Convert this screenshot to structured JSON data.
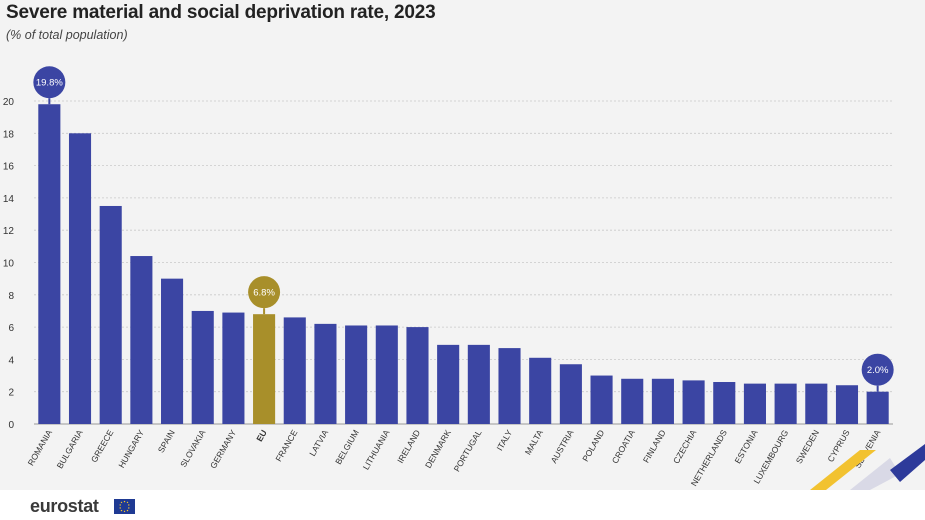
{
  "header": {
    "title": "Severe material and social deprivation rate, 2023",
    "subtitle": "(% of total population)"
  },
  "footer": {
    "brand": "eurostat",
    "flag_icon": "eu-flag-icon"
  },
  "colors": {
    "bar": "#3b45a3",
    "eu_bar": "#a88f2a",
    "badge": "#3b45a3",
    "eu_badge": "#a88f2a",
    "grid": "#c9c9c9",
    "accent_yellow": "#f2c230",
    "accent_blue": "#2d3a9a"
  },
  "chart_data": {
    "type": "bar",
    "categories": [
      "ROMANIA",
      "BULGARIA",
      "GREECE",
      "HUNGARY",
      "SPAIN",
      "SLOVAKIA",
      "GERMANY",
      "EU",
      "FRANCE",
      "LATVIA",
      "BELGIUM",
      "LITHUANIA",
      "IRELAND",
      "DENMARK",
      "PORTUGAL",
      "ITALY",
      "MALTA",
      "AUSTRIA",
      "POLAND",
      "CROATIA",
      "FINLAND",
      "CZECHIA",
      "NETHERLANDS",
      "ESTONIA",
      "LUXEMBOURG",
      "SWEDEN",
      "CYPRUS",
      "SLOVENIA"
    ],
    "values": [
      19.8,
      18.0,
      13.5,
      10.4,
      9.0,
      7.0,
      6.9,
      6.8,
      6.6,
      6.2,
      6.1,
      6.1,
      6.0,
      4.9,
      4.9,
      4.7,
      4.1,
      3.7,
      3.0,
      2.8,
      2.8,
      2.7,
      2.6,
      2.5,
      2.5,
      2.5,
      2.4,
      2.0
    ],
    "highlight": "EU",
    "callouts": [
      {
        "category": "ROMANIA",
        "label": "19.8%"
      },
      {
        "category": "EU",
        "label": "6.8%"
      },
      {
        "category": "SLOVENIA",
        "label": "2.0%"
      }
    ],
    "yticks": [
      0,
      2,
      4,
      6,
      8,
      10,
      12,
      14,
      16,
      18,
      20
    ],
    "ylim": [
      0,
      20
    ],
    "grid": true,
    "xlabel": "",
    "ylabel": ""
  }
}
